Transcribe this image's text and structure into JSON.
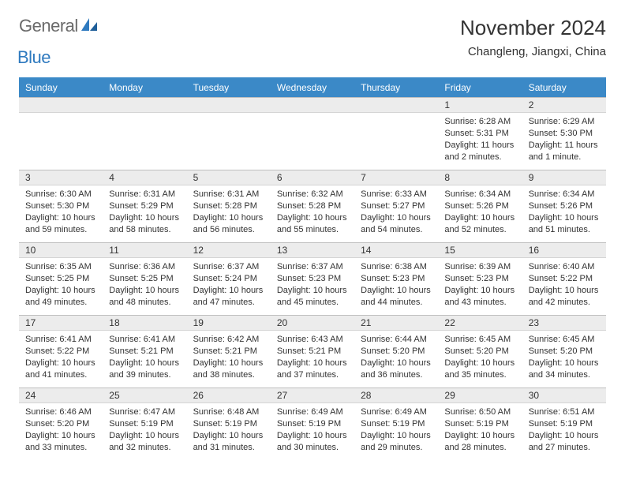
{
  "brand": {
    "word1": "General",
    "word2": "Blue"
  },
  "title": "November 2024",
  "location": "Changleng, Jiangxi, China",
  "colors": {
    "header_bg": "#3b89c7",
    "header_text": "#ffffff",
    "daynum_bg": "#ececec",
    "border": "#bfbfbf",
    "text": "#333333",
    "logo_gray": "#6a6a6a",
    "logo_blue": "#2f7abf"
  },
  "weekdays": [
    "Sunday",
    "Monday",
    "Tuesday",
    "Wednesday",
    "Thursday",
    "Friday",
    "Saturday"
  ],
  "weeks": [
    [
      {
        "n": "",
        "r": "",
        "s": "",
        "d": ""
      },
      {
        "n": "",
        "r": "",
        "s": "",
        "d": ""
      },
      {
        "n": "",
        "r": "",
        "s": "",
        "d": ""
      },
      {
        "n": "",
        "r": "",
        "s": "",
        "d": ""
      },
      {
        "n": "",
        "r": "",
        "s": "",
        "d": ""
      },
      {
        "n": "1",
        "r": "Sunrise: 6:28 AM",
        "s": "Sunset: 5:31 PM",
        "d": "Daylight: 11 hours and 2 minutes."
      },
      {
        "n": "2",
        "r": "Sunrise: 6:29 AM",
        "s": "Sunset: 5:30 PM",
        "d": "Daylight: 11 hours and 1 minute."
      }
    ],
    [
      {
        "n": "3",
        "r": "Sunrise: 6:30 AM",
        "s": "Sunset: 5:30 PM",
        "d": "Daylight: 10 hours and 59 minutes."
      },
      {
        "n": "4",
        "r": "Sunrise: 6:31 AM",
        "s": "Sunset: 5:29 PM",
        "d": "Daylight: 10 hours and 58 minutes."
      },
      {
        "n": "5",
        "r": "Sunrise: 6:31 AM",
        "s": "Sunset: 5:28 PM",
        "d": "Daylight: 10 hours and 56 minutes."
      },
      {
        "n": "6",
        "r": "Sunrise: 6:32 AM",
        "s": "Sunset: 5:28 PM",
        "d": "Daylight: 10 hours and 55 minutes."
      },
      {
        "n": "7",
        "r": "Sunrise: 6:33 AM",
        "s": "Sunset: 5:27 PM",
        "d": "Daylight: 10 hours and 54 minutes."
      },
      {
        "n": "8",
        "r": "Sunrise: 6:34 AM",
        "s": "Sunset: 5:26 PM",
        "d": "Daylight: 10 hours and 52 minutes."
      },
      {
        "n": "9",
        "r": "Sunrise: 6:34 AM",
        "s": "Sunset: 5:26 PM",
        "d": "Daylight: 10 hours and 51 minutes."
      }
    ],
    [
      {
        "n": "10",
        "r": "Sunrise: 6:35 AM",
        "s": "Sunset: 5:25 PM",
        "d": "Daylight: 10 hours and 49 minutes."
      },
      {
        "n": "11",
        "r": "Sunrise: 6:36 AM",
        "s": "Sunset: 5:25 PM",
        "d": "Daylight: 10 hours and 48 minutes."
      },
      {
        "n": "12",
        "r": "Sunrise: 6:37 AM",
        "s": "Sunset: 5:24 PM",
        "d": "Daylight: 10 hours and 47 minutes."
      },
      {
        "n": "13",
        "r": "Sunrise: 6:37 AM",
        "s": "Sunset: 5:23 PM",
        "d": "Daylight: 10 hours and 45 minutes."
      },
      {
        "n": "14",
        "r": "Sunrise: 6:38 AM",
        "s": "Sunset: 5:23 PM",
        "d": "Daylight: 10 hours and 44 minutes."
      },
      {
        "n": "15",
        "r": "Sunrise: 6:39 AM",
        "s": "Sunset: 5:23 PM",
        "d": "Daylight: 10 hours and 43 minutes."
      },
      {
        "n": "16",
        "r": "Sunrise: 6:40 AM",
        "s": "Sunset: 5:22 PM",
        "d": "Daylight: 10 hours and 42 minutes."
      }
    ],
    [
      {
        "n": "17",
        "r": "Sunrise: 6:41 AM",
        "s": "Sunset: 5:22 PM",
        "d": "Daylight: 10 hours and 41 minutes."
      },
      {
        "n": "18",
        "r": "Sunrise: 6:41 AM",
        "s": "Sunset: 5:21 PM",
        "d": "Daylight: 10 hours and 39 minutes."
      },
      {
        "n": "19",
        "r": "Sunrise: 6:42 AM",
        "s": "Sunset: 5:21 PM",
        "d": "Daylight: 10 hours and 38 minutes."
      },
      {
        "n": "20",
        "r": "Sunrise: 6:43 AM",
        "s": "Sunset: 5:21 PM",
        "d": "Daylight: 10 hours and 37 minutes."
      },
      {
        "n": "21",
        "r": "Sunrise: 6:44 AM",
        "s": "Sunset: 5:20 PM",
        "d": "Daylight: 10 hours and 36 minutes."
      },
      {
        "n": "22",
        "r": "Sunrise: 6:45 AM",
        "s": "Sunset: 5:20 PM",
        "d": "Daylight: 10 hours and 35 minutes."
      },
      {
        "n": "23",
        "r": "Sunrise: 6:45 AM",
        "s": "Sunset: 5:20 PM",
        "d": "Daylight: 10 hours and 34 minutes."
      }
    ],
    [
      {
        "n": "24",
        "r": "Sunrise: 6:46 AM",
        "s": "Sunset: 5:20 PM",
        "d": "Daylight: 10 hours and 33 minutes."
      },
      {
        "n": "25",
        "r": "Sunrise: 6:47 AM",
        "s": "Sunset: 5:19 PM",
        "d": "Daylight: 10 hours and 32 minutes."
      },
      {
        "n": "26",
        "r": "Sunrise: 6:48 AM",
        "s": "Sunset: 5:19 PM",
        "d": "Daylight: 10 hours and 31 minutes."
      },
      {
        "n": "27",
        "r": "Sunrise: 6:49 AM",
        "s": "Sunset: 5:19 PM",
        "d": "Daylight: 10 hours and 30 minutes."
      },
      {
        "n": "28",
        "r": "Sunrise: 6:49 AM",
        "s": "Sunset: 5:19 PM",
        "d": "Daylight: 10 hours and 29 minutes."
      },
      {
        "n": "29",
        "r": "Sunrise: 6:50 AM",
        "s": "Sunset: 5:19 PM",
        "d": "Daylight: 10 hours and 28 minutes."
      },
      {
        "n": "30",
        "r": "Sunrise: 6:51 AM",
        "s": "Sunset: 5:19 PM",
        "d": "Daylight: 10 hours and 27 minutes."
      }
    ]
  ]
}
